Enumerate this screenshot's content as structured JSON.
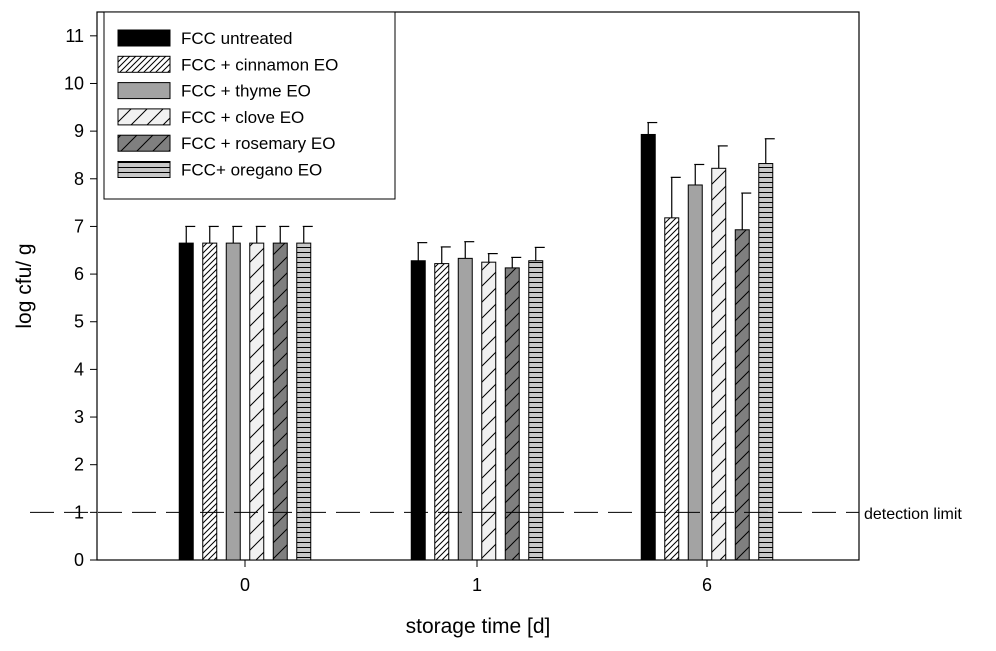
{
  "chart_data": {
    "type": "bar",
    "title": "",
    "xlabel": "storage time [d]",
    "ylabel": "log cfu/ g",
    "ylim": [
      0,
      11.5
    ],
    "yticks": [
      0,
      1,
      2,
      3,
      4,
      5,
      6,
      7,
      8,
      9,
      10,
      11
    ],
    "categories": [
      "0",
      "1",
      "6"
    ],
    "grid": false,
    "legend_position": "top-left",
    "series": [
      {
        "name": "FCC untreated",
        "values": [
          6.65,
          6.28,
          8.93
        ],
        "errors": [
          0.35,
          0.38,
          0.25
        ],
        "fill": "#000000",
        "pattern": "solid"
      },
      {
        "name": "FCC + cinnamon EO",
        "values": [
          6.65,
          6.22,
          7.18
        ],
        "errors": [
          0.35,
          0.35,
          0.85
        ],
        "fill": "#ffffff",
        "pattern": "diag-dense"
      },
      {
        "name": "FCC + thyme EO",
        "values": [
          6.65,
          6.33,
          7.87
        ],
        "errors": [
          0.35,
          0.35,
          0.43
        ],
        "fill": "#a3a3a3",
        "pattern": "solid"
      },
      {
        "name": "FCC + clove EO",
        "values": [
          6.65,
          6.25,
          8.22
        ],
        "errors": [
          0.35,
          0.18,
          0.47
        ],
        "fill": "#f1f1f1",
        "pattern": "diag-wide"
      },
      {
        "name": "FCC + rosemary EO",
        "values": [
          6.65,
          6.13,
          6.93
        ],
        "errors": [
          0.35,
          0.22,
          0.77
        ],
        "fill": "#7f7f7f",
        "pattern": "diag-wide"
      },
      {
        "name": "FCC+ oregano EO",
        "values": [
          6.65,
          6.28,
          8.32
        ],
        "errors": [
          0.35,
          0.28,
          0.52
        ],
        "fill": "#c8c8c8",
        "pattern": "horizontal"
      }
    ],
    "reference_line": {
      "value": 1,
      "label": "detection limit",
      "style": "dashed"
    }
  }
}
